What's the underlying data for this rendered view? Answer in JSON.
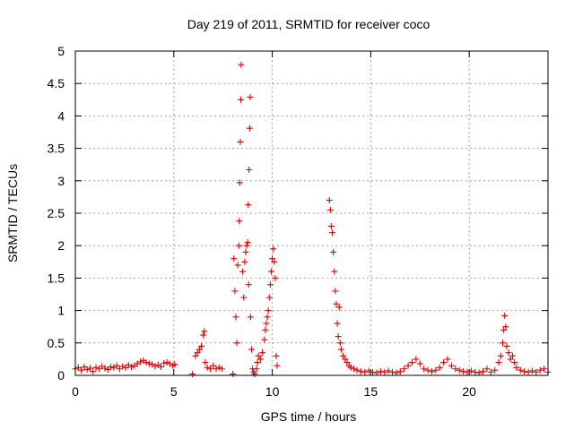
{
  "chart_data": {
    "type": "scatter",
    "title": "Day 219 of 2011, SRMTID for receiver coco",
    "xlabel": "GPS time / hours",
    "ylabel": "SRMTID / TECUs",
    "xlim": [
      0,
      24
    ],
    "ylim": [
      0,
      5
    ],
    "xticks": [
      0,
      5,
      10,
      15,
      20
    ],
    "xtick_labels": [
      "0",
      "5",
      "10",
      "15",
      "20"
    ],
    "yticks": [
      0,
      0.5,
      1,
      1.5,
      2,
      2.5,
      3,
      3.5,
      4,
      4.5,
      5
    ],
    "ytick_labels": [
      "0",
      "0.5",
      "1",
      "1.5",
      "2",
      "2.5",
      "3",
      "3.5",
      "4",
      "4.5",
      "5"
    ],
    "grid": true,
    "marker": "+",
    "series": [
      {
        "color": "#e00000",
        "points": [
          [
            0.0,
            0.1
          ],
          [
            0.15,
            0.12
          ],
          [
            0.3,
            0.08
          ],
          [
            0.45,
            0.13
          ],
          [
            0.6,
            0.09
          ],
          [
            0.75,
            0.11
          ],
          [
            0.9,
            0.06
          ],
          [
            1.05,
            0.12
          ],
          [
            1.2,
            0.1
          ],
          [
            1.35,
            0.14
          ],
          [
            1.5,
            0.11
          ],
          [
            1.65,
            0.09
          ],
          [
            1.8,
            0.13
          ],
          [
            1.95,
            0.12
          ],
          [
            2.1,
            0.15
          ],
          [
            2.25,
            0.1
          ],
          [
            2.4,
            0.14
          ],
          [
            2.55,
            0.12
          ],
          [
            2.7,
            0.16
          ],
          [
            2.85,
            0.13
          ],
          [
            3.0,
            0.15
          ],
          [
            3.15,
            0.18
          ],
          [
            3.3,
            0.21
          ],
          [
            3.45,
            0.23
          ],
          [
            3.6,
            0.2
          ],
          [
            3.75,
            0.18
          ],
          [
            3.9,
            0.17
          ],
          [
            4.05,
            0.14
          ],
          [
            4.2,
            0.16
          ],
          [
            4.35,
            0.13
          ],
          [
            4.5,
            0.19
          ],
          [
            4.65,
            0.2
          ],
          [
            4.8,
            0.18
          ],
          [
            4.95,
            0.15
          ],
          [
            5.05,
            0.17
          ],
          [
            5.95,
            0.02
          ],
          [
            6.1,
            0.3
          ],
          [
            6.2,
            0.35
          ],
          [
            6.3,
            0.4
          ],
          [
            6.4,
            0.45
          ],
          [
            6.5,
            0.62
          ],
          [
            6.55,
            0.68
          ],
          [
            6.6,
            0.2
          ],
          [
            6.7,
            0.12
          ],
          [
            6.85,
            0.1
          ],
          [
            7.0,
            0.15
          ],
          [
            7.15,
            0.1
          ],
          [
            7.3,
            0.12
          ],
          [
            7.45,
            0.1
          ],
          [
            8.0,
            0.02
          ],
          [
            8.05,
            1.8
          ],
          [
            8.1,
            1.3
          ],
          [
            8.15,
            0.9
          ],
          [
            8.2,
            0.5
          ],
          [
            8.25,
            1.7
          ],
          [
            8.3,
            2.0
          ],
          [
            8.32,
            2.38
          ],
          [
            8.35,
            2.97
          ],
          [
            8.38,
            3.6
          ],
          [
            8.4,
            4.25
          ],
          [
            8.42,
            4.79
          ],
          [
            8.5,
            1.6
          ],
          [
            8.55,
            1.2
          ],
          [
            8.6,
            1.75
          ],
          [
            8.65,
            1.9
          ],
          [
            8.7,
            2.0
          ],
          [
            8.75,
            2.05
          ],
          [
            8.78,
            2.63
          ],
          [
            8.8,
            1.4
          ],
          [
            8.82,
            3.17
          ],
          [
            8.85,
            3.81
          ],
          [
            8.88,
            4.29
          ],
          [
            8.9,
            0.9
          ],
          [
            8.95,
            0.4
          ],
          [
            9.0,
            0.1
          ],
          [
            9.05,
            0.05
          ],
          [
            9.1,
            0.02
          ],
          [
            9.2,
            0.1
          ],
          [
            9.25,
            0.2
          ],
          [
            9.3,
            0.3
          ],
          [
            9.4,
            0.25
          ],
          [
            9.5,
            0.35
          ],
          [
            9.6,
            0.55
          ],
          [
            9.65,
            0.7
          ],
          [
            9.7,
            0.8
          ],
          [
            9.75,
            0.9
          ],
          [
            9.8,
            1.0
          ],
          [
            9.85,
            1.2
          ],
          [
            9.9,
            1.4
          ],
          [
            9.95,
            1.6
          ],
          [
            10.0,
            1.8
          ],
          [
            10.05,
            1.95
          ],
          [
            10.1,
            1.75
          ],
          [
            10.15,
            1.5
          ],
          [
            10.2,
            0.3
          ],
          [
            10.25,
            0.15
          ],
          [
            12.9,
            2.7
          ],
          [
            12.95,
            2.55
          ],
          [
            13.0,
            2.3
          ],
          [
            13.05,
            2.2
          ],
          [
            13.1,
            1.9
          ],
          [
            13.15,
            1.6
          ],
          [
            13.2,
            1.3
          ],
          [
            13.25,
            1.1
          ],
          [
            13.3,
            0.8
          ],
          [
            13.35,
            0.6
          ],
          [
            13.4,
            1.05
          ],
          [
            13.45,
            0.5
          ],
          [
            13.5,
            0.4
          ],
          [
            13.6,
            0.3
          ],
          [
            13.7,
            0.25
          ],
          [
            13.8,
            0.2
          ],
          [
            13.9,
            0.15
          ],
          [
            14.0,
            0.12
          ],
          [
            14.15,
            0.1
          ],
          [
            14.3,
            0.08
          ],
          [
            14.5,
            0.06
          ],
          [
            14.7,
            0.05
          ],
          [
            14.9,
            0.07
          ],
          [
            15.1,
            0.05
          ],
          [
            15.3,
            0.04
          ],
          [
            15.5,
            0.06
          ],
          [
            15.7,
            0.05
          ],
          [
            15.9,
            0.07
          ],
          [
            16.1,
            0.05
          ],
          [
            16.3,
            0.04
          ],
          [
            16.5,
            0.06
          ],
          [
            16.7,
            0.1
          ],
          [
            16.9,
            0.15
          ],
          [
            17.1,
            0.2
          ],
          [
            17.3,
            0.25
          ],
          [
            17.5,
            0.18
          ],
          [
            17.7,
            0.1
          ],
          [
            17.9,
            0.08
          ],
          [
            18.1,
            0.06
          ],
          [
            18.3,
            0.08
          ],
          [
            18.5,
            0.12
          ],
          [
            18.7,
            0.2
          ],
          [
            18.9,
            0.25
          ],
          [
            19.1,
            0.15
          ],
          [
            19.3,
            0.1
          ],
          [
            19.5,
            0.08
          ],
          [
            19.7,
            0.06
          ],
          [
            19.9,
            0.05
          ],
          [
            20.1,
            0.07
          ],
          [
            20.3,
            0.05
          ],
          [
            20.5,
            0.04
          ],
          [
            20.7,
            0.06
          ],
          [
            20.9,
            0.1
          ],
          [
            21.1,
            0.05
          ],
          [
            21.3,
            0.08
          ],
          [
            21.5,
            0.2
          ],
          [
            21.6,
            0.3
          ],
          [
            21.7,
            0.5
          ],
          [
            21.75,
            0.7
          ],
          [
            21.8,
            0.92
          ],
          [
            21.85,
            0.75
          ],
          [
            21.9,
            0.45
          ],
          [
            22.0,
            0.35
          ],
          [
            22.1,
            0.25
          ],
          [
            22.2,
            0.3
          ],
          [
            22.3,
            0.2
          ],
          [
            22.4,
            0.12
          ],
          [
            22.6,
            0.08
          ],
          [
            22.8,
            0.06
          ],
          [
            23.0,
            0.05
          ],
          [
            23.2,
            0.07
          ],
          [
            23.4,
            0.05
          ],
          [
            23.6,
            0.08
          ],
          [
            23.8,
            0.1
          ],
          [
            24.0,
            0.05
          ]
        ]
      }
    ]
  }
}
